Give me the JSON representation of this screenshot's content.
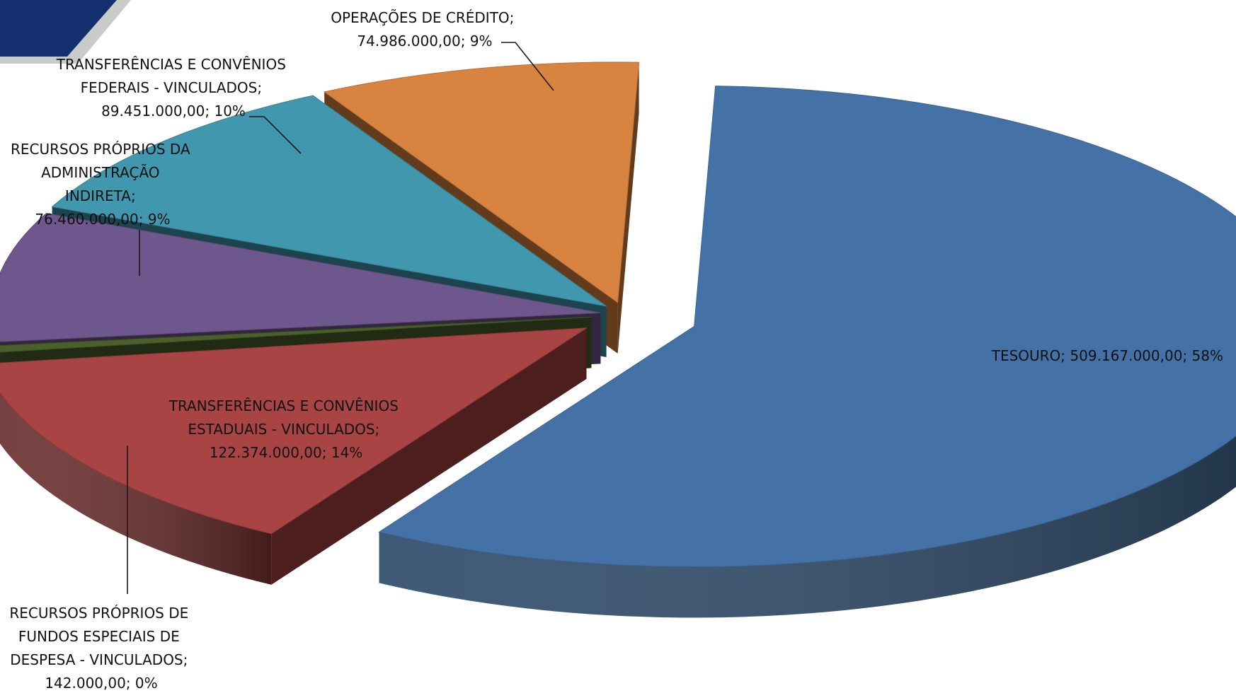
{
  "chart_data": {
    "type": "pie",
    "title": "",
    "style": "3d-exploded",
    "slices": [
      {
        "label_lines": [
          "TESOURO; 509.167.000,00; 58%"
        ],
        "category": "TESOURO",
        "value": 509167000.0,
        "percent": 58,
        "color": "#4472a6"
      },
      {
        "label_lines": [
          "OPERAÇÕES DE CRÉDITO;",
          "74.986.000,00; 9%"
        ],
        "category": "OPERAÇÕES DE CRÉDITO",
        "value": 74986000.0,
        "percent": 9,
        "color": "#d98340"
      },
      {
        "label_lines": [
          "TRANSFERÊNCIAS E CONVÊNIOS",
          "FEDERAIS - VINCULADOS;",
          "89.451.000,00; 10%"
        ],
        "category": "TRANSFERÊNCIAS E CONVÊNIOS FEDERAIS - VINCULADOS",
        "value": 89451000.0,
        "percent": 10,
        "color": "#4197ae"
      },
      {
        "label_lines": [
          "RECURSOS PRÓPRIOS DA",
          "ADMINISTRAÇÃO",
          "INDIRETA;",
          "76.460.000,00; 9%"
        ],
        "category": "RECURSOS PRÓPRIOS DA ADMINISTRAÇÃO INDIRETA",
        "value": 76460000.0,
        "percent": 9,
        "color": "#6e578c"
      },
      {
        "label_lines": [
          "RECURSOS PRÓPRIOS DE",
          "FUNDOS ESPECIAIS DE",
          "DESPESA - VINCULADOS;",
          "142.000,00; 0%"
        ],
        "category": "RECURSOS PRÓPRIOS DE FUNDOS ESPECIAIS DE DESPESA - VINCULADOS",
        "value": 142000.0,
        "percent": 0,
        "color": "#4a5f2a"
      },
      {
        "label_lines": [
          "TRANSFERÊNCIAS E CONVÊNIOS",
          "ESTADUAIS - VINCULADOS;",
          "122.374.000,00; 14%"
        ],
        "category": "TRANSFERÊNCIAS E CONVÊNIOS ESTADUAIS - VINCULADOS",
        "value": 122374000.0,
        "percent": 14,
        "color": "#a84443"
      }
    ]
  },
  "decoration": {
    "corner_color": "#14306f",
    "corner_shadow_color": "#c9cbc9"
  }
}
